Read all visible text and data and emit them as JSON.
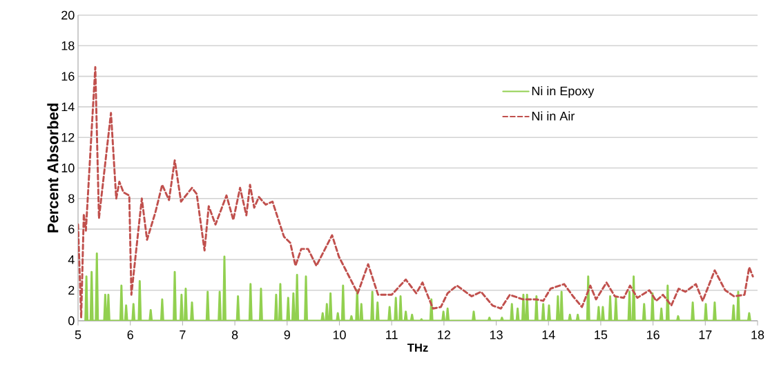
{
  "chart_data": {
    "type": "line",
    "xlabel": "THz",
    "ylabel": "Percent Absorbed",
    "xlim": [
      5,
      18
    ],
    "xticks": [
      5,
      6,
      7,
      8,
      9,
      10,
      11,
      12,
      13,
      14,
      15,
      16,
      17,
      18
    ],
    "ylim": [
      0,
      20
    ],
    "yticks": [
      0,
      2,
      4,
      6,
      8,
      10,
      12,
      14,
      16,
      18,
      20
    ],
    "grid": "y",
    "legend": "top right",
    "series": [
      {
        "name": "Ni in Epoxy",
        "color": "#92d050",
        "line_style": "solid",
        "x": [
          5.14,
          5.16,
          5.18,
          5.24,
          5.26,
          5.28,
          5.34,
          5.36,
          5.38,
          5.5,
          5.52,
          5.54,
          5.56,
          5.58,
          5.6,
          5.81,
          5.83,
          5.85,
          5.9,
          5.92,
          5.94,
          6.04,
          6.06,
          6.08,
          6.16,
          6.18,
          6.2,
          6.37,
          6.39,
          6.41,
          6.59,
          6.61,
          6.63,
          6.83,
          6.85,
          6.87,
          6.96,
          6.98,
          7.0,
          7.04,
          7.06,
          7.08,
          7.16,
          7.18,
          7.2,
          7.46,
          7.48,
          7.5,
          7.69,
          7.71,
          7.73,
          7.78,
          7.8,
          7.82,
          8.04,
          8.06,
          8.08,
          8.28,
          8.3,
          8.32,
          8.48,
          8.5,
          8.52,
          8.77,
          8.79,
          8.81,
          8.85,
          8.87,
          8.89,
          9.0,
          9.02,
          9.04,
          9.1,
          9.12,
          9.14,
          9.17,
          9.19,
          9.21,
          9.34,
          9.36,
          9.38,
          9.66,
          9.68,
          9.7,
          9.74,
          9.76,
          9.78,
          9.81,
          9.83,
          9.85,
          9.95,
          9.97,
          9.99,
          10.05,
          10.07,
          10.09,
          10.21,
          10.23,
          10.25,
          10.32,
          10.34,
          10.36,
          10.4,
          10.42,
          10.44,
          10.61,
          10.63,
          10.65,
          10.71,
          10.73,
          10.75,
          10.94,
          10.96,
          10.98,
          11.06,
          11.08,
          11.1,
          11.15,
          11.17,
          11.19,
          11.25,
          11.27,
          11.29,
          11.37,
          11.39,
          11.41,
          11.55,
          11.57,
          11.59,
          11.74,
          11.76,
          11.78,
          11.97,
          11.99,
          12.01,
          12.05,
          12.07,
          12.09,
          12.55,
          12.57,
          12.59,
          12.85,
          12.87,
          12.89,
          13.09,
          13.11,
          13.13,
          13.28,
          13.3,
          13.32,
          13.39,
          13.41,
          13.43,
          13.5,
          13.52,
          13.54,
          13.57,
          13.59,
          13.61,
          13.75,
          13.77,
          13.79,
          13.88,
          13.9,
          13.92,
          13.99,
          14.01,
          14.03,
          14.16,
          14.18,
          14.2,
          14.23,
          14.25,
          14.27,
          14.39,
          14.41,
          14.43,
          14.54,
          14.56,
          14.58,
          14.74,
          14.76,
          14.78,
          14.94,
          14.96,
          14.98,
          15.02,
          15.04,
          15.06,
          15.16,
          15.18,
          15.2,
          15.27,
          15.29,
          15.31,
          15.53,
          15.55,
          15.57,
          15.61,
          15.63,
          15.65,
          15.81,
          15.83,
          15.85,
          15.97,
          15.99,
          16.01,
          16.14,
          16.16,
          16.18,
          16.26,
          16.28,
          16.3,
          16.46,
          16.48,
          16.5,
          16.74,
          16.76,
          16.78,
          16.99,
          17.01,
          17.03,
          17.16,
          17.18,
          17.2,
          17.52,
          17.54,
          17.56,
          17.61,
          17.63,
          17.65,
          17.82,
          17.84,
          17.86
        ],
        "values": [
          0,
          2.9,
          0,
          0,
          3.2,
          0,
          0,
          4.4,
          0,
          0,
          1.7,
          0,
          0,
          1.7,
          0,
          0,
          2.3,
          0,
          0,
          1.0,
          0,
          0,
          1.1,
          0,
          0,
          2.6,
          0,
          0,
          0.7,
          0,
          0,
          1.4,
          0,
          0,
          3.2,
          0,
          0,
          1.7,
          0,
          0,
          2.1,
          0,
          0,
          1.2,
          0,
          0,
          1.9,
          0,
          0,
          1.9,
          0,
          0,
          4.2,
          0,
          0,
          1.6,
          0,
          0,
          2.4,
          0,
          0,
          2.1,
          0,
          0,
          1.7,
          0,
          0,
          2.4,
          0,
          0,
          1.5,
          0,
          0,
          1.8,
          0,
          0,
          3.0,
          0,
          0,
          2.9,
          0,
          0,
          0.5,
          0,
          0,
          1.1,
          0,
          0,
          1.8,
          0,
          0,
          0.5,
          0,
          0,
          2.3,
          0,
          0,
          0.3,
          0,
          0,
          2.0,
          0,
          0,
          1.1,
          0,
          0,
          1.9,
          0,
          0,
          1.2,
          0,
          0,
          0.9,
          0,
          0,
          1.5,
          0,
          0,
          1.6,
          0,
          0,
          0.6,
          0,
          0,
          0.4,
          0,
          0,
          0.1,
          0,
          0,
          1.4,
          0,
          0,
          0.6,
          0,
          0,
          0.8,
          0,
          0,
          0.6,
          0,
          0,
          0.2,
          0,
          0,
          0.2,
          0,
          0,
          1.1,
          0,
          0,
          0.8,
          0,
          0,
          1.7,
          0,
          0,
          1.7,
          0,
          0,
          1.6,
          0,
          0,
          1.1,
          0,
          0,
          1.0,
          0,
          0,
          1.6,
          0,
          0,
          1.9,
          0,
          0,
          0.4,
          0,
          0,
          0.4,
          0,
          0,
          2.9,
          0,
          0,
          0.9,
          0,
          0,
          0.9,
          0,
          0,
          1.6,
          0,
          0,
          1.5,
          0,
          0,
          1.9,
          0,
          0,
          2.9,
          0,
          0,
          1.1,
          0,
          0,
          1.8,
          0,
          0,
          0.8,
          0,
          0,
          2.3,
          0,
          0,
          0.3,
          0,
          0,
          1.2,
          0,
          0,
          1.1,
          0,
          0,
          1.2,
          0,
          0,
          1.0,
          0,
          0,
          1.9,
          0,
          0,
          0.5,
          0
        ]
      },
      {
        "name": "Ni in Air",
        "color": "#c0504d",
        "line_style": "dashed",
        "x": [
          5.0,
          5.06,
          5.11,
          5.15,
          5.33,
          5.4,
          5.63,
          5.73,
          5.79,
          5.87,
          5.98,
          6.02,
          6.22,
          6.32,
          6.48,
          6.61,
          6.74,
          6.85,
          6.97,
          7.18,
          7.27,
          7.42,
          7.5,
          7.63,
          7.84,
          7.97,
          8.1,
          8.22,
          8.29,
          8.37,
          8.46,
          8.59,
          8.72,
          8.94,
          9.06,
          9.16,
          9.27,
          9.4,
          9.56,
          9.86,
          9.99,
          10.35,
          10.55,
          10.74,
          11.0,
          11.27,
          11.47,
          11.59,
          11.79,
          11.94,
          12.07,
          12.25,
          12.53,
          12.71,
          12.93,
          13.09,
          13.26,
          13.51,
          13.64,
          13.77,
          13.9,
          14.04,
          14.3,
          14.47,
          14.64,
          14.8,
          14.91,
          15.11,
          15.27,
          15.44,
          15.56,
          15.7,
          15.93,
          16.06,
          16.19,
          16.35,
          16.49,
          16.62,
          16.82,
          16.95,
          17.18,
          17.38,
          17.55,
          17.75,
          17.84,
          17.91
        ],
        "values": [
          6.3,
          0.2,
          7.0,
          5.9,
          16.6,
          6.7,
          13.6,
          8.0,
          9.1,
          8.4,
          8.2,
          1.7,
          8.0,
          5.3,
          7.1,
          8.9,
          7.9,
          10.5,
          7.8,
          8.7,
          8.3,
          4.6,
          7.5,
          6.3,
          8.2,
          6.6,
          8.7,
          6.9,
          8.9,
          7.4,
          8.1,
          7.6,
          7.8,
          5.5,
          5.1,
          3.6,
          4.7,
          4.7,
          3.6,
          5.6,
          4.2,
          1.8,
          3.7,
          1.7,
          1.7,
          2.7,
          1.8,
          2.5,
          0.8,
          0.9,
          1.8,
          2.3,
          1.6,
          1.9,
          1.0,
          0.8,
          1.7,
          1.4,
          1.4,
          1.4,
          1.3,
          2.1,
          2.4,
          1.6,
          0.9,
          2.3,
          1.4,
          2.5,
          1.6,
          1.5,
          2.3,
          1.5,
          2.0,
          1.3,
          1.7,
          1.0,
          2.1,
          1.9,
          2.4,
          1.3,
          3.3,
          2.0,
          1.6,
          1.7,
          3.5,
          2.9
        ]
      }
    ]
  }
}
